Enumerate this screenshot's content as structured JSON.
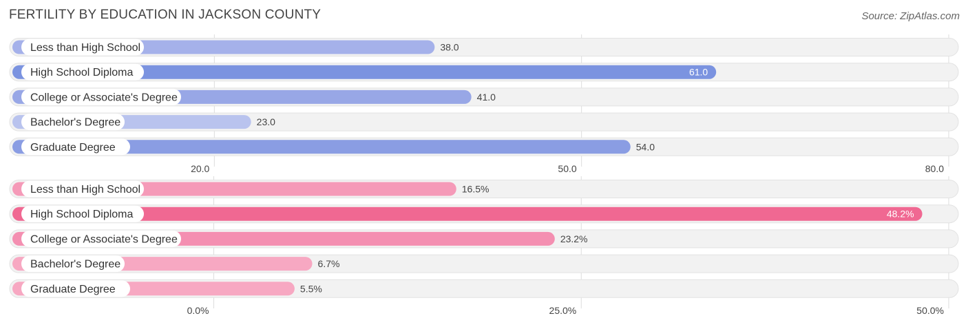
{
  "header": {
    "title": "FERTILITY BY EDUCATION IN JACKSON COUNTY",
    "source": "Source: ZipAtlas.com"
  },
  "chart_data": [
    {
      "type": "bar",
      "orientation": "horizontal",
      "categories": [
        "Less than High School",
        "High School Diploma",
        "College or Associate's Degree",
        "Bachelor's Degree",
        "Graduate Degree"
      ],
      "values": [
        38.0,
        61.0,
        41.0,
        23.0,
        54.0
      ],
      "value_labels": [
        "38.0",
        "61.0",
        "41.0",
        "23.0",
        "54.0"
      ],
      "xlim": [
        3.5,
        80.0
      ],
      "ticks": [
        20.0,
        50.0,
        80.0
      ],
      "tick_labels": [
        "20.0",
        "50.0",
        "80.0"
      ],
      "colors": [
        "#a5b1ea",
        "#7b93e0",
        "#98a7e6",
        "#b9c3ee",
        "#8a9de3"
      ],
      "highlight_index": 1
    },
    {
      "type": "bar",
      "orientation": "horizontal",
      "categories": [
        "Less than High School",
        "High School Diploma",
        "College or Associate's Degree",
        "Bachelor's Degree",
        "Graduate Degree"
      ],
      "values": [
        16.5,
        48.2,
        23.2,
        6.7,
        5.5
      ],
      "value_labels": [
        "16.5%",
        "48.2%",
        "23.2%",
        "6.7%",
        "5.5%"
      ],
      "xlim": [
        -13.7,
        50.0
      ],
      "ticks": [
        0.0,
        25.0,
        50.0
      ],
      "tick_labels": [
        "0.0%",
        "25.0%",
        "50.0%"
      ],
      "colors": [
        "#f59ab8",
        "#f06892",
        "#f48fb1",
        "#f7a8c2",
        "#f7a8c2"
      ],
      "highlight_index": 1
    }
  ]
}
